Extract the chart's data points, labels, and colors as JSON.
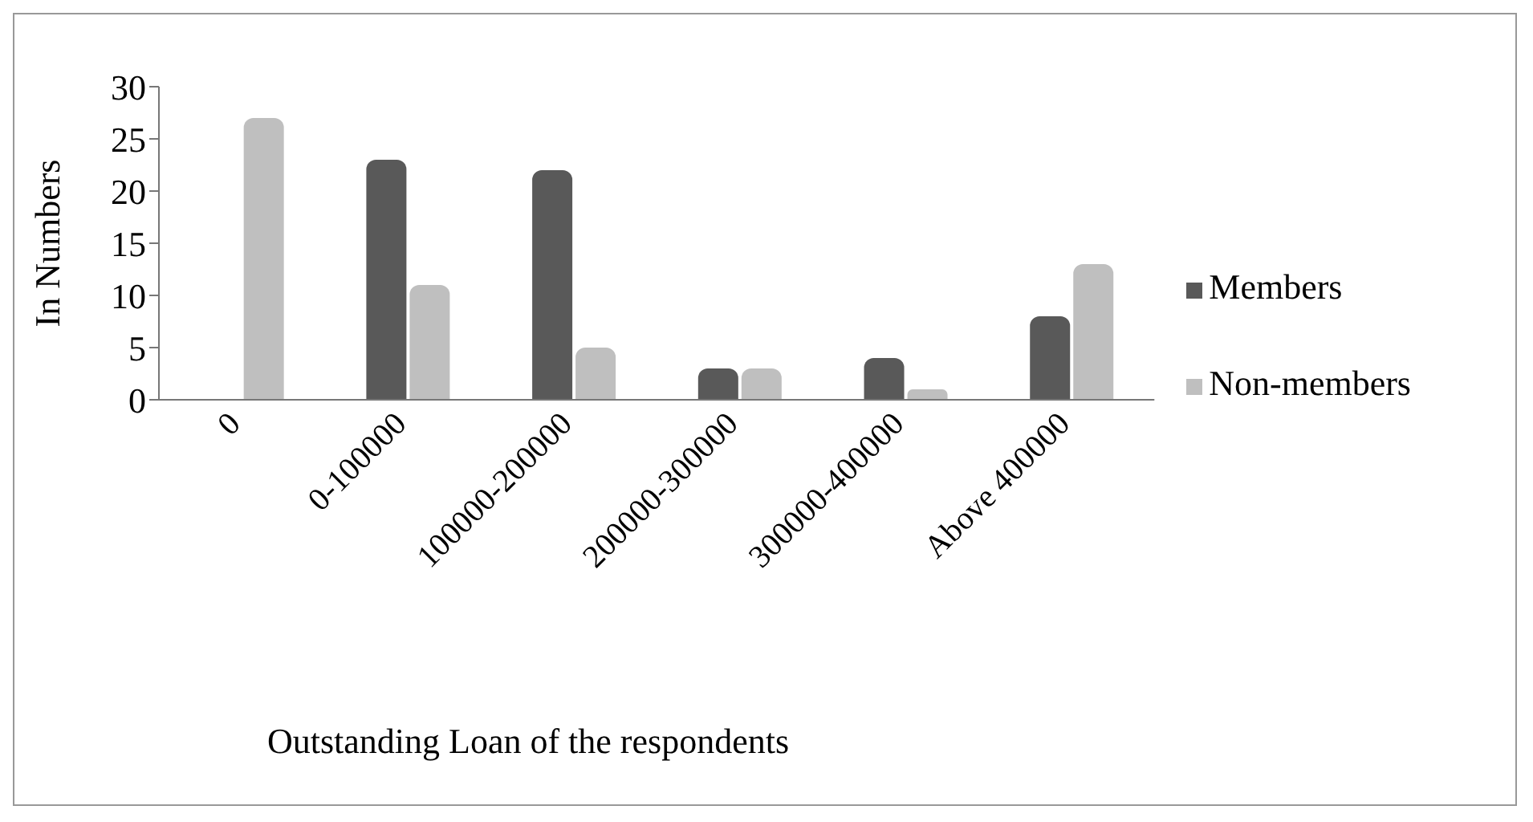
{
  "chart_data": {
    "type": "bar",
    "xlabel": "Outstanding Loan of the respondents",
    "ylabel": "In Numbers",
    "categories": [
      "0",
      "0-100000",
      "100000-200000",
      "200000-300000",
      "300000-400000",
      "Above 400000"
    ],
    "series": [
      {
        "name": "Members",
        "color": "#595959",
        "values": [
          0,
          23,
          22,
          3,
          4,
          8
        ]
      },
      {
        "name": "Non-members",
        "color": "#bfbfbf",
        "values": [
          27,
          11,
          5,
          3,
          1,
          13
        ]
      }
    ],
    "ylim": [
      0,
      30
    ],
    "yticks": [
      0,
      5,
      10,
      15,
      20,
      25,
      30
    ],
    "grid": false,
    "legend": "right"
  }
}
